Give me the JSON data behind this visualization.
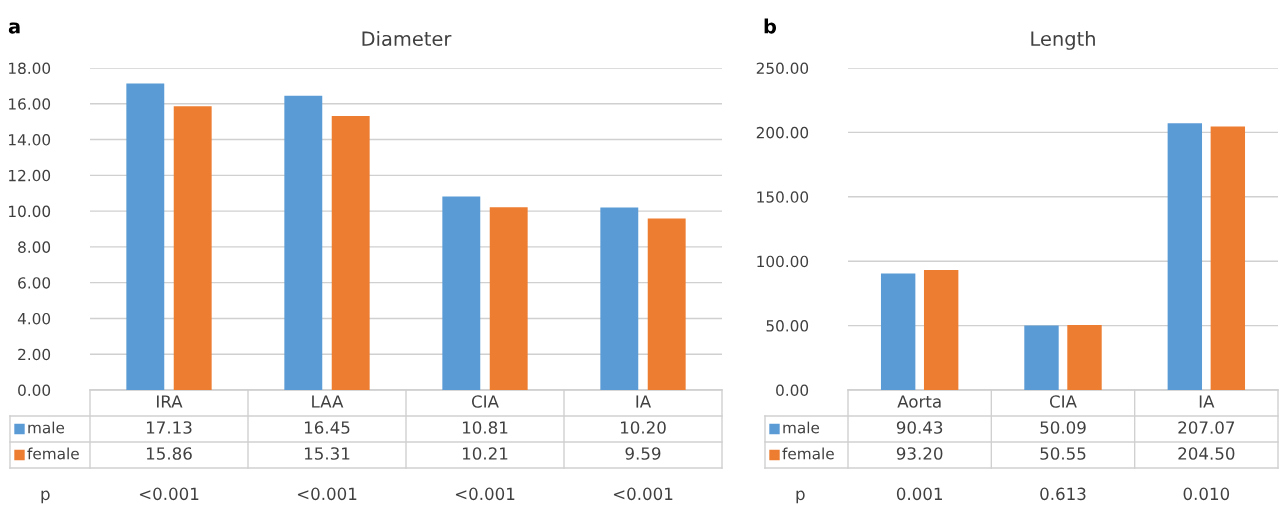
{
  "chart_data": [
    {
      "type": "bar",
      "title": "Diameter",
      "categories": [
        "IRA",
        "LAA",
        "CIA",
        "IA"
      ],
      "series": [
        {
          "name": "male",
          "color": "#5b9bd5",
          "values": [
            17.13,
            16.45,
            10.81,
            10.2
          ],
          "value_labels": [
            "17.13",
            "16.45",
            "10.81",
            "10.20"
          ]
        },
        {
          "name": "female",
          "color": "#ed7d31",
          "values": [
            15.86,
            15.31,
            10.21,
            9.59
          ],
          "value_labels": [
            "15.86",
            "15.31",
            "10.21",
            "9.59"
          ]
        }
      ],
      "ylim": [
        0,
        18
      ],
      "yticks": [
        {
          "value": 0,
          "label": "0.00"
        },
        {
          "value": 2,
          "label": "2.00"
        },
        {
          "value": 4,
          "label": "4.00"
        },
        {
          "value": 6,
          "label": "6.00"
        },
        {
          "value": 8,
          "label": "8.00"
        },
        {
          "value": 10,
          "label": "10.00"
        },
        {
          "value": 12,
          "label": "12.00"
        },
        {
          "value": 14,
          "label": "14.00"
        },
        {
          "value": 16,
          "label": "16.00"
        },
        {
          "value": 18,
          "label": "18.00"
        }
      ],
      "grid": "y",
      "legend": "bottom left",
      "annotations": [
        "a",
        "p",
        "<0.001",
        "<0.001",
        "<0.001",
        "<0.001"
      ]
    },
    {
      "type": "bar",
      "title": "Length",
      "categories": [
        "Aorta",
        "CIA",
        "IA"
      ],
      "series": [
        {
          "name": "male",
          "color": "#5b9bd5",
          "values": [
            90.43,
            50.09,
            207.07
          ],
          "value_labels": [
            "90.43",
            "50.09",
            "207.07"
          ]
        },
        {
          "name": "female",
          "color": "#ed7d31",
          "values": [
            93.2,
            50.55,
            204.5
          ],
          "value_labels": [
            "93.20",
            "50.55",
            "204.50"
          ]
        }
      ],
      "ylim": [
        0,
        250
      ],
      "yticks": [
        {
          "value": 0,
          "label": "0.00"
        },
        {
          "value": 50,
          "label": "50.00"
        },
        {
          "value": 100,
          "label": "100.00"
        },
        {
          "value": 150,
          "label": "150.00"
        },
        {
          "value": 200,
          "label": "200.00"
        },
        {
          "value": 250,
          "label": "250.00"
        }
      ],
      "grid": "y",
      "legend": "bottom left",
      "annotations": [
        "b",
        "p",
        "0.001",
        "0.613",
        "0.010"
      ]
    }
  ]
}
